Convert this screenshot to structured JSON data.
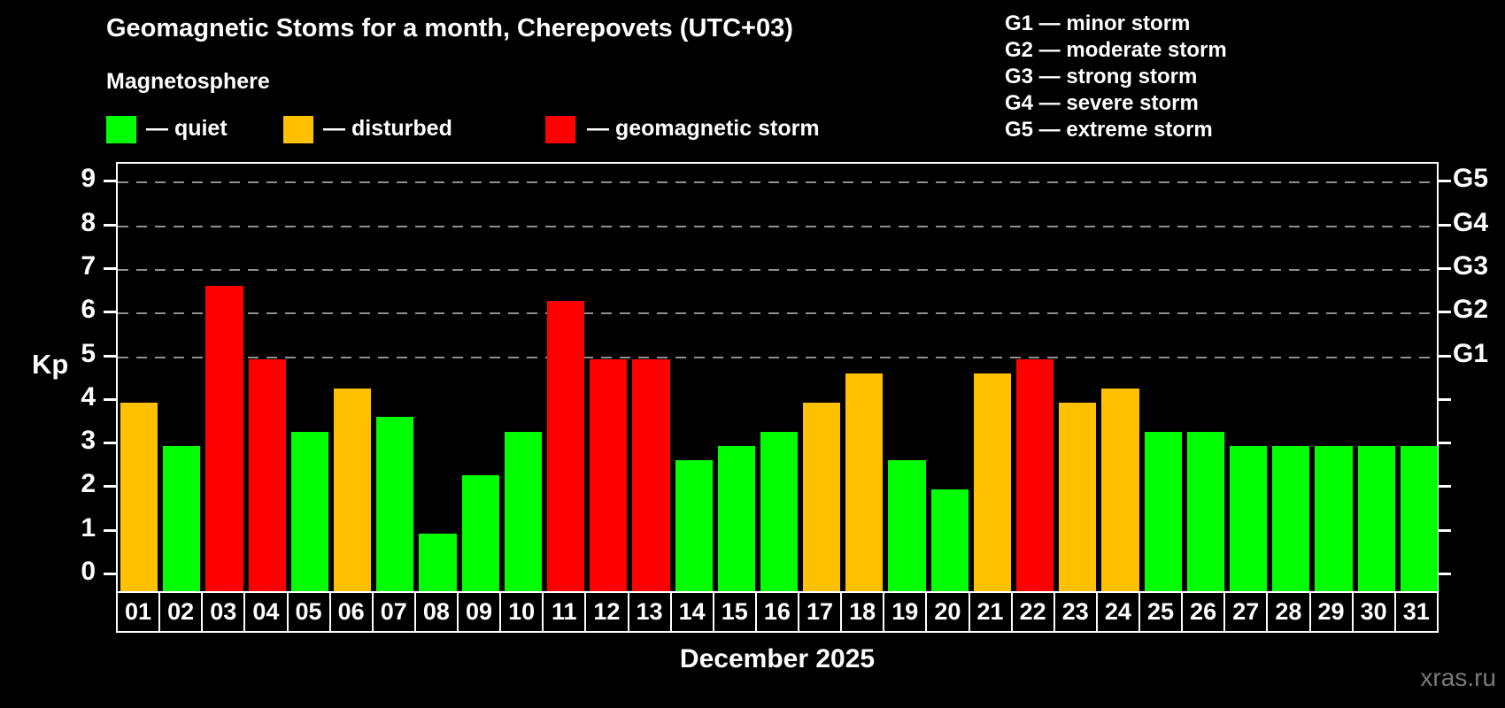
{
  "title": "Geomagnetic Stoms for a month, Cherepovets (UTC+03)",
  "subtitle": "Magnetosphere",
  "legend": {
    "quiet": "— quiet",
    "disturbed": "— disturbed",
    "storm": "— geomagnetic storm"
  },
  "g_scale_legend": [
    "G1 — minor storm",
    "G2 — moderate storm",
    "G3 — strong storm",
    "G4 — severe storm",
    "G5 — extreme storm"
  ],
  "colors": {
    "quiet": "#00ff00",
    "disturbed": "#ffc000",
    "storm": "#ff0000",
    "grid": "#909090",
    "frame": "#ffffff",
    "watermark_text": "#7a7a7a",
    "background": "#000000"
  },
  "axes": {
    "y_label": "Kp",
    "y_ticks": [
      0,
      1,
      2,
      3,
      4,
      5,
      6,
      7,
      8,
      9
    ],
    "gridlines": [
      5,
      6,
      7,
      8,
      9
    ],
    "right_axis": [
      {
        "value": 9,
        "label": "G5"
      },
      {
        "value": 8,
        "label": "G4"
      },
      {
        "value": 7,
        "label": "G3"
      },
      {
        "value": 6,
        "label": "G2"
      },
      {
        "value": 5,
        "label": "G1"
      }
    ],
    "x_label": "December 2025"
  },
  "watermark": "xras.ru",
  "chart_data": {
    "type": "bar",
    "title": "Geomagnetic Stoms for a month, Cherepovets (UTC+03)",
    "xlabel": "December 2025",
    "ylabel": "Kp",
    "ylim": [
      0,
      9
    ],
    "legend_position": "top-left",
    "grid": "dashed horizontal at Kp 5-9",
    "categories": [
      "01",
      "02",
      "03",
      "04",
      "05",
      "06",
      "07",
      "08",
      "09",
      "10",
      "11",
      "12",
      "13",
      "14",
      "15",
      "16",
      "17",
      "18",
      "19",
      "20",
      "21",
      "22",
      "23",
      "24",
      "25",
      "26",
      "27",
      "28",
      "29",
      "30",
      "31"
    ],
    "values": [
      4.0,
      3.0,
      6.67,
      5.0,
      3.33,
      4.33,
      3.67,
      1.0,
      2.33,
      3.33,
      6.33,
      5.0,
      5.0,
      2.67,
      3.0,
      3.33,
      4.0,
      4.67,
      2.67,
      2.0,
      4.67,
      5.0,
      4.0,
      4.33,
      3.33,
      3.33,
      3.0,
      3.0,
      3.0,
      3.0,
      3.0
    ],
    "statuses": [
      "disturbed",
      "quiet",
      "storm",
      "storm",
      "quiet",
      "disturbed",
      "quiet",
      "quiet",
      "quiet",
      "quiet",
      "storm",
      "storm",
      "storm",
      "quiet",
      "quiet",
      "quiet",
      "disturbed",
      "disturbed",
      "quiet",
      "quiet",
      "disturbed",
      "storm",
      "disturbed",
      "disturbed",
      "quiet",
      "quiet",
      "quiet",
      "quiet",
      "quiet",
      "quiet",
      "quiet"
    ]
  }
}
